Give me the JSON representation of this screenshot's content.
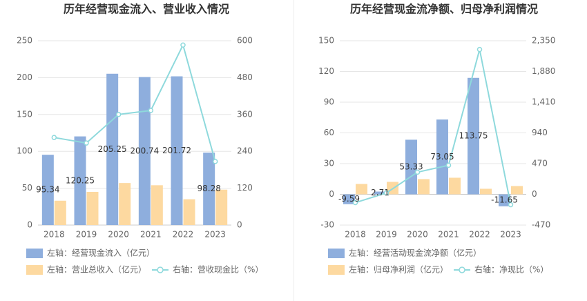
{
  "chart_data": [
    {
      "type": "bar",
      "title": "历年经营现金流入、营业收入情况",
      "categories": [
        "2018",
        "2019",
        "2020",
        "2021",
        "2022",
        "2023"
      ],
      "ylim": [
        0,
        250
      ],
      "yticks": [
        0,
        50,
        100,
        150,
        200,
        250
      ],
      "y2lim": [
        0,
        600
      ],
      "y2ticks": [
        0,
        120,
        240,
        360,
        480,
        600
      ],
      "grid": true,
      "series": [
        {
          "name": "左轴：经营现金流入（亿元）",
          "color": "#8eaedd",
          "values": [
            95.34,
            120.25,
            205.25,
            200.74,
            201.72,
            98.28
          ],
          "labels": true
        },
        {
          "name": "左轴：营业总收入（亿元）",
          "color": "#fdd9a0",
          "values": [
            33,
            45,
            57,
            54,
            35,
            48
          ]
        },
        {
          "name": "右轴：营收现金比（%）",
          "color": "#8ed9dc",
          "type": "line",
          "axis": "y2",
          "values": [
            285,
            267,
            360,
            373,
            586,
            207
          ]
        }
      ]
    },
    {
      "type": "bar",
      "title": "历年经营现金流净额、归母净利润情况",
      "categories": [
        "2018",
        "2019",
        "2020",
        "2021",
        "2022",
        "2023"
      ],
      "ylim": [
        -30,
        150
      ],
      "yticks": [
        -30,
        0,
        30,
        60,
        90,
        120,
        150
      ],
      "y2lim": [
        -470,
        2350
      ],
      "y2ticks": [
        -470,
        0,
        470,
        940,
        {
          "value": 1410,
          "label": "1,410"
        },
        {
          "value": 1880,
          "label": "1,880"
        },
        {
          "value": 2350,
          "label": "2,350"
        }
      ],
      "grid": true,
      "series": [
        {
          "name": "左轴：经营活动现金流净额（亿元）",
          "color": "#8eaedd",
          "values": [
            -9.59,
            2.71,
            53.33,
            73.05,
            113.75,
            -11.65
          ],
          "labels": true
        },
        {
          "name": "左轴：归母净利润（亿元）",
          "color": "#fdd9a0",
          "axis": "y2",
          "values": [
            159,
            191,
            233,
            254,
            85,
            127
          ]
        },
        {
          "name": "右轴：净现比（%）",
          "color": "#8ed9dc",
          "type": "line",
          "axis": "y2",
          "values": [
            -127,
            21,
            339,
            445,
            2216,
            -159
          ]
        }
      ]
    }
  ]
}
